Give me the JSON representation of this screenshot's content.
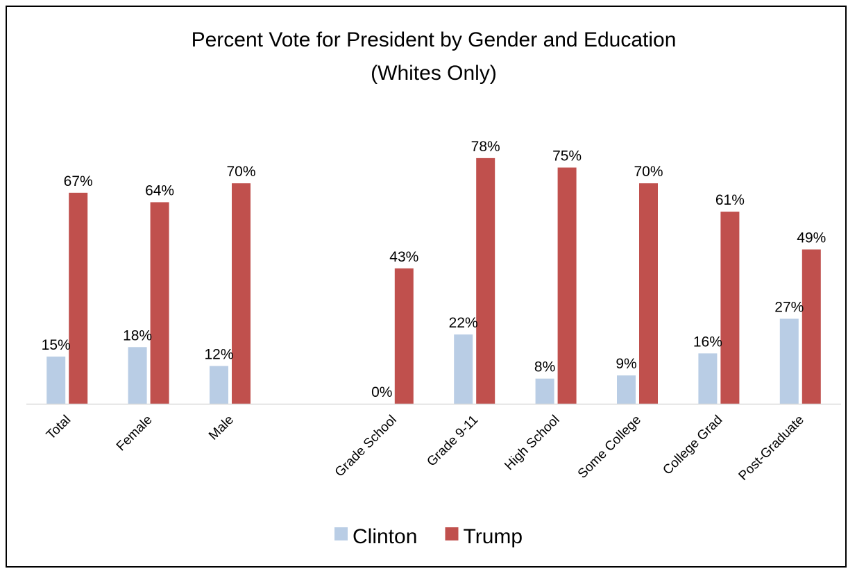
{
  "chart_data": {
    "type": "bar",
    "title": "Percent Vote for President by Gender and Education",
    "subtitle": "(Whites Only)",
    "categories": [
      "Total",
      "Female",
      "Male",
      "",
      "Grade School",
      "Grade 9-11",
      "High School",
      "Some College",
      "College Grad",
      "Post-Graduate"
    ],
    "series": [
      {
        "name": "Clinton",
        "color": "#B9CDE5",
        "values": [
          15,
          18,
          12,
          null,
          0,
          22,
          8,
          9,
          16,
          27
        ],
        "labels": [
          "15%",
          "18%",
          "12%",
          "",
          "0%",
          "22%",
          "8%",
          "9%",
          "16%",
          "27%"
        ]
      },
      {
        "name": "Trump",
        "color": "#C0504D",
        "values": [
          67,
          64,
          70,
          null,
          43,
          78,
          75,
          70,
          61,
          49
        ],
        "labels": [
          "67%",
          "64%",
          "70%",
          "",
          "43%",
          "78%",
          "75%",
          "70%",
          "61%",
          "49%"
        ]
      }
    ],
    "ylim": [
      0,
      100
    ],
    "grid": false,
    "legend_position": "bottom",
    "axis_color": "#D9D9D9"
  }
}
